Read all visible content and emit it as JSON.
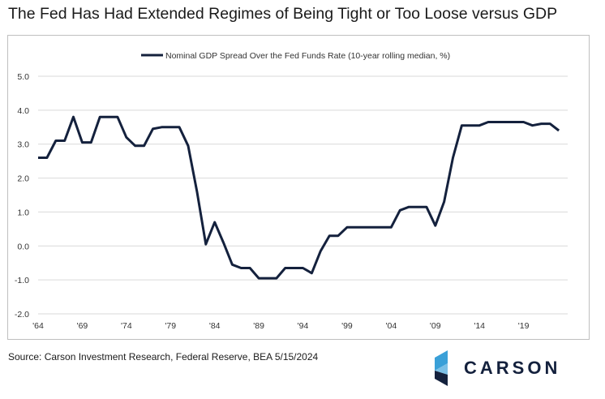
{
  "title": "The Fed Has Had Extended Regimes of Being Tight or Too Loose versus GDP",
  "source": "Source: Carson Investment Research, Federal Reserve, BEA 5/15/2024",
  "logo_text": "CARSON",
  "colors": {
    "line": "#14213d",
    "grid": "#d9d9d9",
    "logo_light": "#3aa0d8",
    "logo_dark": "#14213d"
  },
  "chart_data": {
    "type": "line",
    "title": "",
    "xlabel": "",
    "ylabel": "",
    "ylim": [
      -2.0,
      5.0
    ],
    "xlim": [
      1964,
      2024
    ],
    "grid": "horizontal",
    "legend": "top-center",
    "y_ticks": [
      "5.0",
      "4.0",
      "3.0",
      "2.0",
      "1.0",
      "0.0",
      "-1.0",
      "-2.0"
    ],
    "y_tick_values": [
      5,
      4,
      3,
      2,
      1,
      0,
      -1,
      -2
    ],
    "x_ticks": [
      "'64",
      "'69",
      "'74",
      "'79",
      "'84",
      "'89",
      "'94",
      "'99",
      "'04",
      "'09",
      "'14",
      "'19"
    ],
    "x_tick_values": [
      1964,
      1969,
      1974,
      1979,
      1984,
      1989,
      1994,
      1999,
      2004,
      2009,
      2014,
      2019
    ],
    "series": [
      {
        "name": "Nominal GDP Spread Over the Fed Funds Rate (10-year rolling median, %)",
        "x": [
          1964,
          1965,
          1966,
          1967,
          1968,
          1969,
          1970,
          1971,
          1972,
          1973,
          1974,
          1975,
          1976,
          1977,
          1978,
          1979,
          1980,
          1981,
          1982,
          1983,
          1984,
          1985,
          1986,
          1987,
          1988,
          1989,
          1990,
          1991,
          1992,
          1993,
          1994,
          1995,
          1996,
          1997,
          1998,
          1999,
          2000,
          2001,
          2002,
          2003,
          2004,
          2005,
          2006,
          2007,
          2008,
          2009,
          2010,
          2011,
          2012,
          2013,
          2014,
          2015,
          2016,
          2017,
          2018,
          2019,
          2020,
          2021,
          2022,
          2023
        ],
        "values": [
          2.6,
          2.6,
          3.1,
          3.1,
          3.8,
          3.05,
          3.05,
          3.8,
          3.8,
          3.8,
          3.2,
          2.95,
          2.95,
          3.45,
          3.5,
          3.5,
          3.5,
          2.95,
          1.6,
          0.05,
          0.7,
          0.1,
          -0.55,
          -0.65,
          -0.65,
          -0.95,
          -0.95,
          -0.95,
          -0.65,
          -0.65,
          -0.65,
          -0.8,
          -0.15,
          0.3,
          0.3,
          0.55,
          0.55,
          0.55,
          0.55,
          0.55,
          0.55,
          1.05,
          1.15,
          1.15,
          1.15,
          0.6,
          1.3,
          2.6,
          3.55,
          3.55,
          3.55,
          3.65,
          3.65,
          3.65,
          3.65,
          3.65,
          3.55,
          3.6,
          3.6,
          3.4
        ]
      }
    ]
  }
}
